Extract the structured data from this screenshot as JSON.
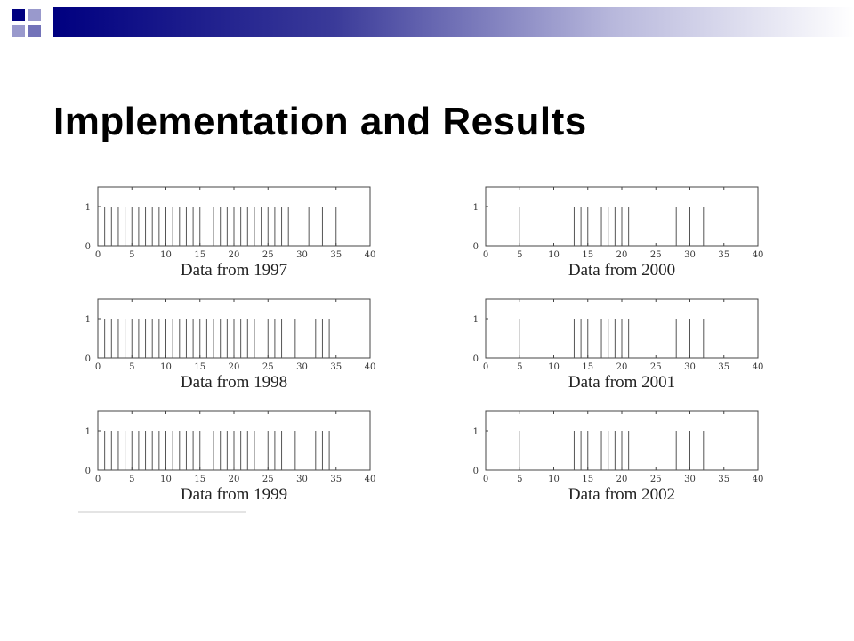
{
  "slide": {
    "title": "Implementation and Results",
    "accent_dark": "#000080",
    "accent_light": "#9999cc"
  },
  "chart_data": [
    {
      "type": "bar",
      "title": "Data from 1997",
      "xlim": [
        0,
        40
      ],
      "ylim": [
        0,
        1
      ],
      "xticks": [
        0,
        5,
        10,
        15,
        20,
        25,
        30,
        35,
        40
      ],
      "yticks": [
        0,
        1
      ],
      "x": [
        1,
        2,
        3,
        4,
        5,
        6,
        7,
        8,
        9,
        10,
        11,
        12,
        13,
        14,
        15,
        17,
        18,
        19,
        20,
        21,
        22,
        23,
        24,
        25,
        26,
        27,
        28,
        30,
        31,
        33,
        35
      ],
      "values_note": "each listed x has value 1, others 0"
    },
    {
      "type": "bar",
      "title": "Data from 1998",
      "xlim": [
        0,
        40
      ],
      "ylim": [
        0,
        1
      ],
      "xticks": [
        0,
        5,
        10,
        15,
        20,
        25,
        30,
        35,
        40
      ],
      "yticks": [
        0,
        1
      ],
      "x": [
        1,
        2,
        3,
        4,
        5,
        6,
        7,
        8,
        9,
        10,
        11,
        12,
        13,
        14,
        15,
        16,
        17,
        18,
        19,
        20,
        21,
        22,
        23,
        25,
        26,
        27,
        29,
        30,
        32,
        33,
        34
      ]
    },
    {
      "type": "bar",
      "title": "Data from 1999",
      "xlim": [
        0,
        40
      ],
      "ylim": [
        0,
        1
      ],
      "xticks": [
        0,
        5,
        10,
        15,
        20,
        25,
        30,
        35,
        40
      ],
      "yticks": [
        0,
        1
      ],
      "x": [
        1,
        2,
        3,
        4,
        5,
        6,
        7,
        8,
        9,
        10,
        11,
        12,
        13,
        14,
        15,
        17,
        18,
        19,
        20,
        21,
        22,
        23,
        25,
        26,
        27,
        29,
        30,
        32,
        33,
        34
      ]
    },
    {
      "type": "bar",
      "title": "Data from 2000",
      "xlim": [
        0,
        40
      ],
      "ylim": [
        0,
        1
      ],
      "xticks": [
        0,
        5,
        10,
        15,
        20,
        25,
        30,
        35,
        40
      ],
      "yticks": [
        0,
        1
      ],
      "x": [
        5,
        13,
        14,
        15,
        17,
        18,
        19,
        20,
        21,
        28,
        30,
        32
      ]
    },
    {
      "type": "bar",
      "title": "Data from 2001",
      "xlim": [
        0,
        40
      ],
      "ylim": [
        0,
        1
      ],
      "xticks": [
        0,
        5,
        10,
        15,
        20,
        25,
        30,
        35,
        40
      ],
      "yticks": [
        0,
        1
      ],
      "x": [
        5,
        13,
        14,
        15,
        17,
        18,
        19,
        20,
        21,
        28,
        30,
        32
      ]
    },
    {
      "type": "bar",
      "title": "Data from 2002",
      "xlim": [
        0,
        40
      ],
      "ylim": [
        0,
        1
      ],
      "xticks": [
        0,
        5,
        10,
        15,
        20,
        25,
        30,
        35,
        40
      ],
      "yticks": [
        0,
        1
      ],
      "x": [
        5,
        13,
        14,
        15,
        17,
        18,
        19,
        20,
        21,
        28,
        30,
        32
      ]
    }
  ]
}
